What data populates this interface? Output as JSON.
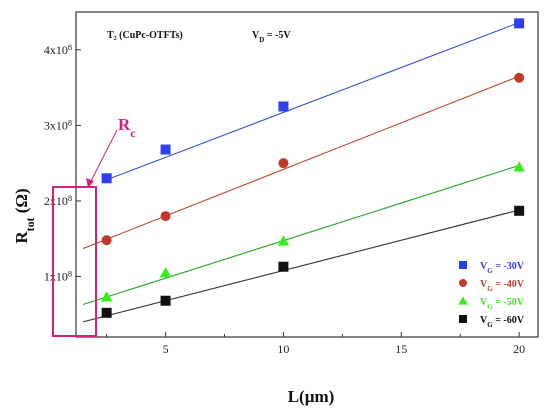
{
  "chart_data": {
    "type": "scatter",
    "header_device": "T₂ (CuPc-OTFTs)",
    "header_bias": "V_D = -5V",
    "xlabel": "L(µm)",
    "ylabel": "R_tot (Ω)",
    "xlim": [
      1.2,
      20.8
    ],
    "ylim": [
      20000000.0,
      450000000.0
    ],
    "x_ticks": [
      5,
      10,
      15,
      20
    ],
    "y_ticks": [
      {
        "value": 100000000.0,
        "label": "1x10^8"
      },
      {
        "value": 200000000.0,
        "label": "2x10^8"
      },
      {
        "value": 300000000.0,
        "label": "3x10^8"
      },
      {
        "value": 400000000.0,
        "label": "4x10^8"
      }
    ],
    "annotation": "R_c",
    "legend_position": "bottom-right",
    "series": [
      {
        "name": "V_G = -30V",
        "marker": "square",
        "color": "#2b3ef0",
        "line_color": "#3a4fd8",
        "x": [
          2.5,
          5,
          10,
          20
        ],
        "y": [
          230000000.0,
          268000000.0,
          325000000.0,
          435000000.0
        ],
        "fit": [
          [
            2.5,
            228000000.0
          ],
          [
            20,
            436000000.0
          ]
        ]
      },
      {
        "name": "V_G = -40V",
        "marker": "circle",
        "color": "#c0392b",
        "line_color": "#c44a3a",
        "x": [
          2.5,
          5,
          10,
          20
        ],
        "y": [
          148000000.0,
          180000000.0,
          250000000.0,
          363000000.0
        ],
        "fit": [
          [
            1.5,
            137000000.0
          ],
          [
            20,
            365000000.0
          ]
        ]
      },
      {
        "name": "V_G = -50V",
        "marker": "triangle",
        "color": "#33ee1a",
        "line_color": "#27a825",
        "x": [
          2.5,
          5,
          10,
          20
        ],
        "y": [
          73000000.0,
          105000000.0,
          147000000.0,
          245000000.0
        ],
        "fit": [
          [
            1.5,
            63000000.0
          ],
          [
            20,
            247000000.0
          ]
        ]
      },
      {
        "name": "V_G = -60V",
        "marker": "square",
        "color": "#111111",
        "line_color": "#333333",
        "x": [
          2.5,
          5,
          10,
          20
        ],
        "y": [
          52000000.0,
          68000000.0,
          113000000.0,
          187000000.0
        ],
        "fit": [
          [
            1.5,
            40000000.0
          ],
          [
            20,
            188000000.0
          ]
        ]
      }
    ]
  }
}
